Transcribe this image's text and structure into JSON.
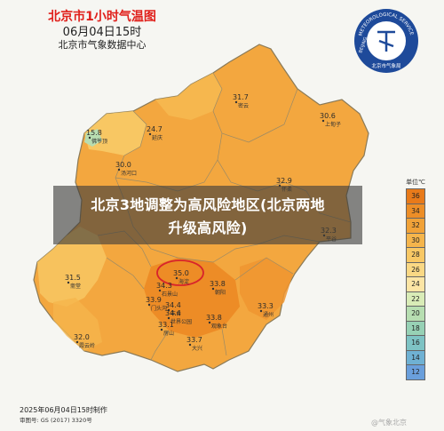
{
  "header": {
    "title": "北京市1小时气温图",
    "time": "06月04日15时",
    "issuer": "北京市气象数据中心"
  },
  "logo": {
    "ring_text": "METEOROLOGICAL SERVICE",
    "bottom_text": "北京市气象局",
    "side_text": "BEIJING"
  },
  "banner": {
    "line1": "北京3地调整为高风险地区(北京两地",
    "line2": "升级高风险)"
  },
  "legend": {
    "unit": "单位℃",
    "levels": [
      {
        "value": "36",
        "color": "#e87a1a"
      },
      {
        "value": "34",
        "color": "#ed8e27"
      },
      {
        "value": "32",
        "color": "#f1a238"
      },
      {
        "value": "30",
        "color": "#f5b54c"
      },
      {
        "value": "28",
        "color": "#f8c865"
      },
      {
        "value": "26",
        "color": "#fad884"
      },
      {
        "value": "24",
        "color": "#fce5a5"
      },
      {
        "value": "22",
        "color": "#d9ecb7"
      },
      {
        "value": "20",
        "color": "#b7deb1"
      },
      {
        "value": "18",
        "color": "#97d1b5"
      },
      {
        "value": "16",
        "color": "#7ec3c4"
      },
      {
        "value": "14",
        "color": "#6fb1d3"
      },
      {
        "value": "12",
        "color": "#6a9fdc"
      }
    ]
  },
  "stations": [
    {
      "name": "延庆",
      "temp": "24.7"
    },
    {
      "name": "密云",
      "temp": "31.7"
    },
    {
      "name": "上甸子",
      "temp": "30.6"
    },
    {
      "name": "佛爷顶",
      "temp": "15.8"
    },
    {
      "name": "汤河口",
      "temp": "30.0"
    },
    {
      "name": "怀柔",
      "temp": "32.9"
    },
    {
      "name": "平谷",
      "temp": "32.3"
    },
    {
      "name": "斋堂",
      "temp": "31.5"
    },
    {
      "name": "海淀",
      "temp": "35.0"
    },
    {
      "name": "石景山",
      "temp": "34.3"
    },
    {
      "name": "门头沟",
      "temp": "33.9"
    },
    {
      "name": "朝阳",
      "temp": "33.8"
    },
    {
      "name": "丰台",
      "temp": "34.4"
    },
    {
      "name": "世界公园",
      "temp": "34.4"
    },
    {
      "name": "通州",
      "temp": "33.3"
    },
    {
      "name": "观象台",
      "temp": "33.8"
    },
    {
      "name": "房山",
      "temp": "33.1"
    },
    {
      "name": "大兴",
      "temp": "33.7"
    },
    {
      "name": "霞云岭",
      "temp": "32.0"
    }
  ],
  "footer": {
    "issued": "2025年06月04日15时制作",
    "approval": "审图号: GS (2017) 3320号"
  },
  "watermark": "@气象北京",
  "highlight_color": "#d8242b"
}
